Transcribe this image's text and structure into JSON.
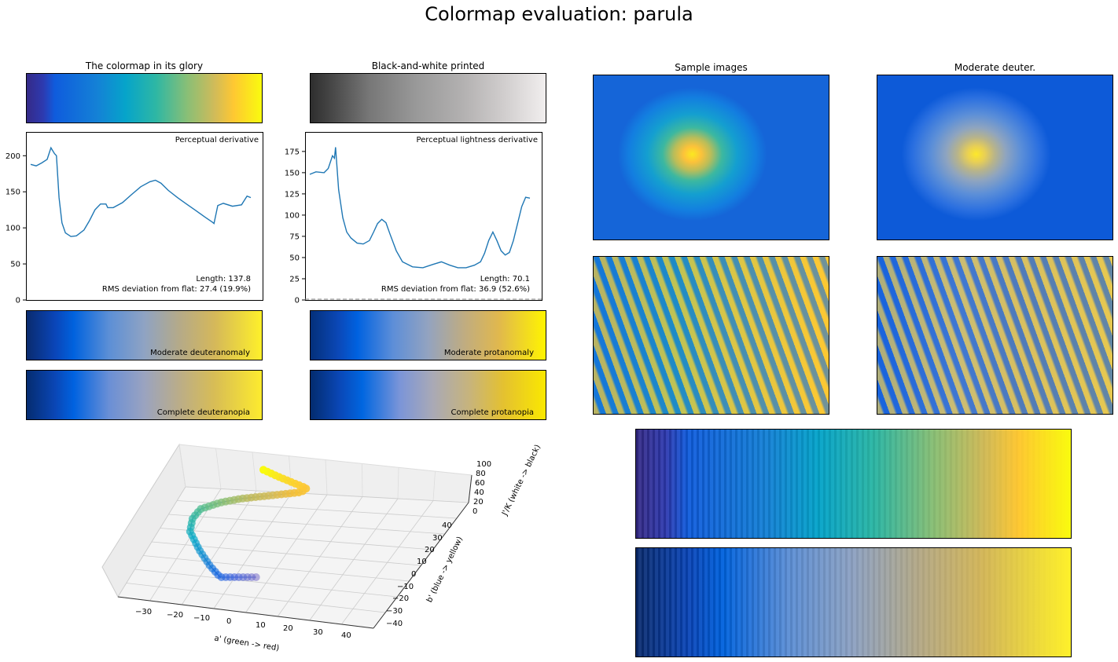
{
  "title": "Colormap evaluation: parula",
  "panels": {
    "glory": "The colormap in its glory",
    "bw": "Black-and-white printed",
    "sample": "Sample images",
    "deuter": "Moderate deuter.",
    "mod_deut": "Moderate deuteranomaly",
    "comp_deut": "Complete deuteranopia",
    "mod_prot": "Moderate protanomaly",
    "comp_prot": "Complete protanopia"
  },
  "colors": {
    "line": "#1f77b4",
    "parula": [
      "#352a87",
      "#0f5cdd",
      "#1481d6",
      "#06a4ca",
      "#2eb7a4",
      "#87bf77",
      "#d1bb59",
      "#fec832",
      "#f9fb0e"
    ]
  },
  "chart_data": [
    {
      "type": "line",
      "title": "Perceptual derivative",
      "ylim": [
        0,
        233
      ],
      "yticks": [
        0,
        50,
        100,
        150,
        200
      ],
      "annotation": [
        "Length: 137.8",
        "RMS deviation from flat: 27.4 (19.9%)"
      ],
      "x": [
        0,
        0.025,
        0.05,
        0.075,
        0.092,
        0.108,
        0.117,
        0.129,
        0.142,
        0.158,
        0.183,
        0.208,
        0.242,
        0.267,
        0.292,
        0.317,
        0.342,
        0.35,
        0.375,
        0.417,
        0.458,
        0.5,
        0.542,
        0.567,
        0.592,
        0.625,
        0.667,
        0.708,
        0.75,
        0.792,
        0.825,
        0.833,
        0.85,
        0.875,
        0.917,
        0.958,
        0.983,
        1.0
      ],
      "values": [
        188,
        186,
        190,
        195,
        211,
        203,
        200,
        142,
        107,
        93,
        88,
        89,
        97,
        110,
        125,
        133,
        133,
        128,
        128,
        135,
        146,
        157,
        164,
        166,
        162,
        152,
        142,
        133,
        124,
        115,
        108,
        106,
        131,
        134,
        130,
        132,
        144,
        142
      ]
    },
    {
      "type": "line",
      "title": "Perceptual lightness derivative",
      "ylim": [
        0,
        198
      ],
      "yticks": [
        0,
        25,
        50,
        75,
        100,
        125,
        150,
        175
      ],
      "annotation": [
        "Length: 70.1",
        "RMS deviation from flat: 36.9 (52.6%)"
      ],
      "x": [
        0,
        0.028,
        0.065,
        0.084,
        0.103,
        0.112,
        0.117,
        0.131,
        0.15,
        0.168,
        0.187,
        0.215,
        0.243,
        0.271,
        0.29,
        0.308,
        0.327,
        0.346,
        0.364,
        0.393,
        0.421,
        0.467,
        0.514,
        0.561,
        0.598,
        0.636,
        0.673,
        0.71,
        0.748,
        0.776,
        0.794,
        0.813,
        0.832,
        0.85,
        0.869,
        0.888,
        0.907,
        0.925,
        0.944,
        0.963,
        0.981,
        1.0
      ],
      "values": [
        148,
        151,
        150,
        155,
        170,
        167,
        180,
        130,
        97,
        80,
        73,
        67,
        66,
        70,
        80,
        90,
        95,
        91,
        78,
        58,
        45,
        39,
        38,
        42,
        45,
        41,
        38,
        38,
        41,
        45,
        55,
        70,
        80,
        70,
        58,
        53,
        56,
        70,
        90,
        110,
        121,
        120
      ],
      "reference_line": 0
    },
    {
      "type": "scatter",
      "subtype": "3d",
      "xlabel": "a' (green -> red)",
      "ylabel": "b' (blue -> yellow)",
      "zlabel": "J'/K (white -> black)",
      "xticks": [
        "−30",
        "−20",
        "−10",
        "0",
        "10",
        "20",
        "30",
        "40"
      ],
      "yticks": [
        "40",
        "30",
        "20",
        "10",
        "0",
        "−10",
        "−20",
        "−30",
        "−40"
      ],
      "zticks": [
        "100",
        "80",
        "60",
        "40",
        "20",
        "0"
      ]
    }
  ]
}
